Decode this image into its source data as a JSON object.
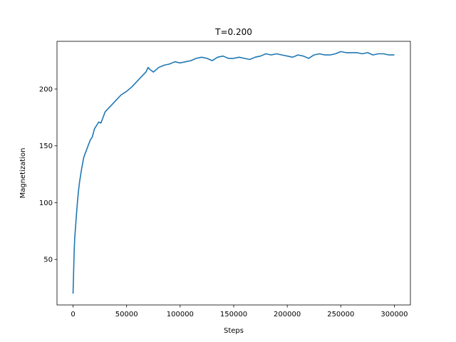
{
  "chart_data": {
    "type": "line",
    "title": "T=0.200",
    "xlabel": "Steps",
    "ylabel": "Magnetization",
    "xlim": [
      -15000,
      315000
    ],
    "ylim": [
      10,
      242
    ],
    "xticks": [
      0,
      50000,
      100000,
      150000,
      200000,
      250000,
      300000
    ],
    "xtick_labels": [
      "0",
      "50000",
      "100000",
      "150000",
      "200000",
      "250000",
      "300000"
    ],
    "yticks": [
      50,
      100,
      150,
      200
    ],
    "ytick_labels": [
      "50",
      "100",
      "150",
      "200"
    ],
    "grid": false,
    "legend": "none",
    "line_color": "#1f77b4",
    "series": [
      {
        "x": [
          0,
          500,
          1000,
          1500,
          2000,
          3000,
          4000,
          5000,
          6000,
          7000,
          8000,
          10000,
          12000,
          14000,
          16000,
          18000,
          20000,
          22000,
          24000,
          26000,
          28000,
          30000,
          33000,
          36000,
          40000,
          45000,
          50000,
          55000,
          60000,
          65000,
          68000,
          70000,
          72000,
          75000,
          80000,
          85000,
          90000,
          95000,
          100000,
          105000,
          110000,
          115000,
          120000,
          125000,
          130000,
          135000,
          140000,
          145000,
          150000,
          155000,
          160000,
          165000,
          170000,
          175000,
          180000,
          185000,
          190000,
          195000,
          200000,
          205000,
          210000,
          215000,
          220000,
          225000,
          230000,
          235000,
          240000,
          245000,
          250000,
          255000,
          260000,
          265000,
          270000,
          275000,
          280000,
          285000,
          290000,
          295000,
          300000
        ],
        "y": [
          20,
          38,
          55,
          68,
          75,
          88,
          100,
          110,
          118,
          124,
          130,
          140,
          145,
          150,
          155,
          158,
          165,
          168,
          171,
          170,
          175,
          180,
          183,
          186,
          190,
          195,
          198,
          202,
          207,
          212,
          215,
          219,
          217,
          215,
          219,
          221,
          222,
          224,
          223,
          224,
          225,
          227,
          228,
          227,
          225,
          228,
          229,
          227,
          227,
          228,
          227,
          226,
          228,
          229,
          231,
          230,
          231,
          230,
          229,
          228,
          230,
          229,
          227,
          230,
          231,
          230,
          230,
          231,
          233,
          232,
          232,
          232,
          231,
          232,
          230,
          231,
          231,
          230,
          230
        ]
      }
    ]
  }
}
